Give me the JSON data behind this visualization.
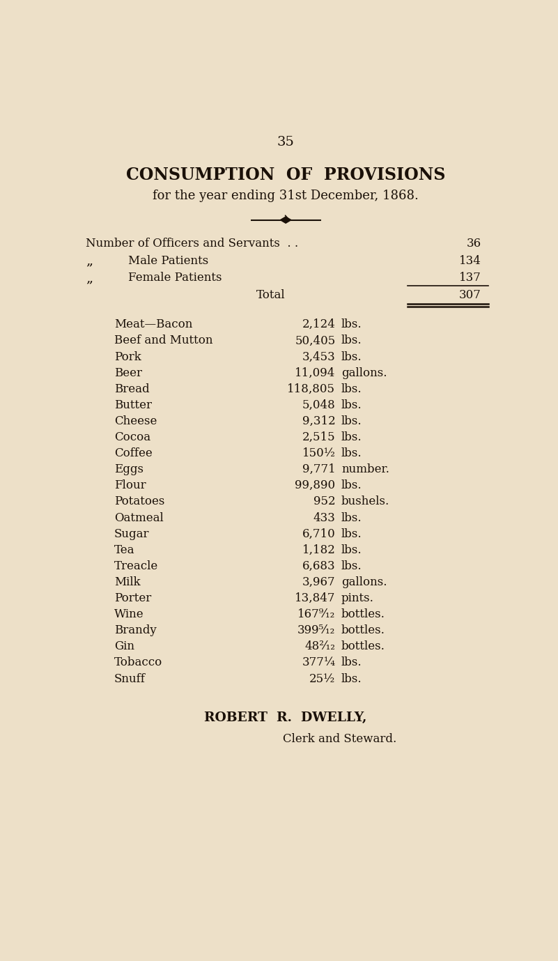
{
  "page_number": "35",
  "title_line1": "CONSUMPTION  OF  PROVISIONS",
  "title_line2": "for the year ending 31st December, 1868.",
  "bg_color": "#EDE0C8",
  "text_color": "#1a1008",
  "total_label": "Total",
  "total_value": "307",
  "items": [
    [
      "Meat—Bacon",
      "2,124",
      "lbs."
    ],
    [
      "Beef and Mutton",
      "50,405",
      "lbs."
    ],
    [
      "Pork",
      "3,453",
      "lbs."
    ],
    [
      "Beer",
      "11,094",
      "gallons."
    ],
    [
      "Bread",
      "118,805",
      "lbs."
    ],
    [
      "Butter",
      "5,048",
      "lbs."
    ],
    [
      "Cheese",
      "9,312",
      "lbs."
    ],
    [
      "Cocoa",
      "2,515",
      "lbs."
    ],
    [
      "Coffee",
      "150½",
      "lbs."
    ],
    [
      "Eggs",
      "9,771",
      "number."
    ],
    [
      "Flour",
      "99,890",
      "lbs."
    ],
    [
      "Potatoes",
      "952",
      "bushels."
    ],
    [
      "Oatmeal",
      "433",
      "lbs."
    ],
    [
      "Sugar",
      "6,710",
      "lbs."
    ],
    [
      "Tea",
      "1,182",
      "lbs."
    ],
    [
      "Treacle",
      "6,683",
      "lbs."
    ],
    [
      "Milk",
      "3,967",
      "gallons."
    ],
    [
      "Porter",
      "13,847",
      "pints."
    ],
    [
      "Wine",
      "167⁹⁄₁₂",
      "bottles."
    ],
    [
      "Brandy",
      "399⁵⁄₁₂",
      "bottles."
    ],
    [
      "Gin",
      "48²⁄₁₂",
      "bottles."
    ],
    [
      "Tobacco",
      "377¼",
      "lbs."
    ],
    [
      "Snuff",
      "25½",
      "lbs."
    ]
  ],
  "signature_name": "ROBERT  R.  DWELLY,",
  "signature_title": "Clerk and Steward."
}
